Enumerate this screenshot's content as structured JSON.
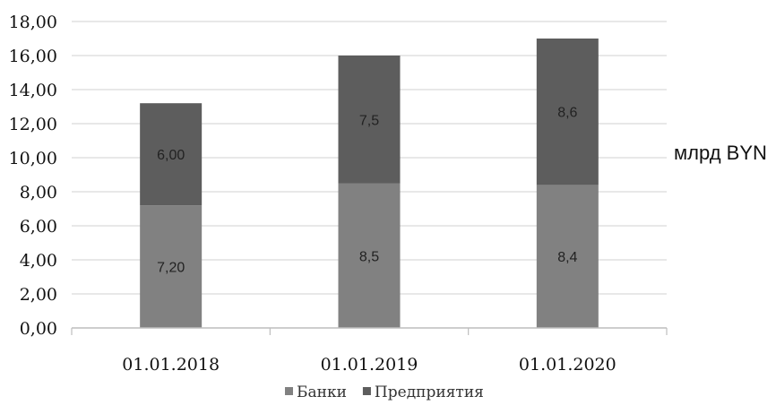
{
  "chart_data": {
    "type": "bar",
    "stacked": true,
    "categories": [
      "01.01.2018",
      "01.01.2019",
      "01.01.2020"
    ],
    "series": [
      {
        "name": "Банки",
        "values": [
          7.2,
          8.5,
          8.4
        ],
        "labels": [
          "7,20",
          "8,5",
          "8,4"
        ],
        "color": "#818181"
      },
      {
        "name": "Предприятия",
        "values": [
          6.0,
          7.5,
          8.6
        ],
        "labels": [
          "6,00",
          "7,5",
          "8,6"
        ],
        "color": "#5d5d5d"
      }
    ],
    "ylim": [
      0,
      18
    ],
    "yticks": [
      "0,00",
      "2,00",
      "4,00",
      "6,00",
      "8,00",
      "10,00",
      "12,00",
      "14,00",
      "16,00",
      "18,00"
    ],
    "ylabel": "млрд BYN",
    "grid": true,
    "legend_position": "bottom"
  }
}
